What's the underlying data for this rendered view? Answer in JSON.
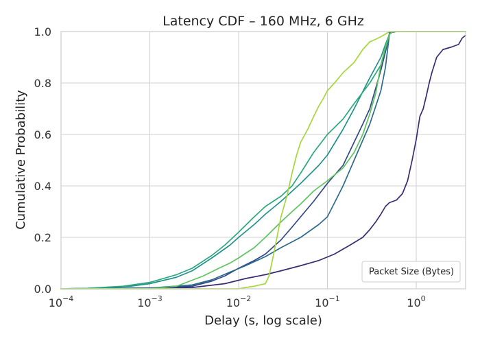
{
  "chart_data": {
    "type": "line",
    "title": "Latency CDF – 160 MHz, 6 GHz",
    "xlabel": "Delay (s, log scale)",
    "ylabel": "Cumulative Probability",
    "xscale": "log",
    "xlim": [
      0.0001,
      3.6
    ],
    "ylim": [
      0,
      1.0
    ],
    "grid": true,
    "legend": {
      "title": "Packet Size (Bytes)",
      "placement": "bottom-right"
    },
    "x_ticks": [
      {
        "base": "10",
        "exp": "−4",
        "value": 0.0001
      },
      {
        "base": "10",
        "exp": "−3",
        "value": 0.001
      },
      {
        "base": "10",
        "exp": "−2",
        "value": 0.01
      },
      {
        "base": "10",
        "exp": "−1",
        "value": 0.1
      },
      {
        "base": "10",
        "exp": "0",
        "value": 1
      }
    ],
    "y_ticks": [
      "0.0",
      "0.2",
      "0.4",
      "0.6",
      "0.8",
      "1.0"
    ],
    "series": [
      {
        "color": "#3b2a73",
        "points": [
          [
            0.0001,
            0
          ],
          [
            0.003,
            0.005
          ],
          [
            0.007,
            0.02
          ],
          [
            0.012,
            0.04
          ],
          [
            0.02,
            0.055
          ],
          [
            0.03,
            0.07
          ],
          [
            0.05,
            0.09
          ],
          [
            0.08,
            0.11
          ],
          [
            0.12,
            0.135
          ],
          [
            0.18,
            0.17
          ],
          [
            0.25,
            0.2
          ],
          [
            0.3,
            0.23
          ],
          [
            0.35,
            0.26
          ],
          [
            0.4,
            0.29
          ],
          [
            0.45,
            0.32
          ],
          [
            0.5,
            0.335
          ],
          [
            0.6,
            0.345
          ],
          [
            0.7,
            0.37
          ],
          [
            0.8,
            0.42
          ],
          [
            0.9,
            0.5
          ],
          [
            1.0,
            0.58
          ],
          [
            1.1,
            0.67
          ],
          [
            1.2,
            0.7
          ],
          [
            1.3,
            0.75
          ],
          [
            1.4,
            0.8
          ],
          [
            1.5,
            0.84
          ],
          [
            1.7,
            0.9
          ],
          [
            2.0,
            0.93
          ],
          [
            2.5,
            0.94
          ],
          [
            3.0,
            0.95
          ],
          [
            3.3,
            0.975
          ],
          [
            3.6,
            0.985
          ]
        ]
      },
      {
        "color": "#31478a",
        "points": [
          [
            0.0001,
            0
          ],
          [
            0.001,
            0.002
          ],
          [
            0.003,
            0.01
          ],
          [
            0.005,
            0.03
          ],
          [
            0.007,
            0.05
          ],
          [
            0.01,
            0.08
          ],
          [
            0.015,
            0.11
          ],
          [
            0.02,
            0.135
          ],
          [
            0.03,
            0.19
          ],
          [
            0.04,
            0.24
          ],
          [
            0.05,
            0.28
          ],
          [
            0.07,
            0.34
          ],
          [
            0.1,
            0.41
          ],
          [
            0.15,
            0.48
          ],
          [
            0.2,
            0.57
          ],
          [
            0.25,
            0.64
          ],
          [
            0.3,
            0.7
          ],
          [
            0.35,
            0.78
          ],
          [
            0.4,
            0.85
          ],
          [
            0.45,
            0.92
          ],
          [
            0.5,
            0.995
          ],
          [
            0.6,
            1.0
          ],
          [
            3.6,
            1.0
          ]
        ]
      },
      {
        "color": "#2a6a8c",
        "points": [
          [
            0.0001,
            0
          ],
          [
            0.001,
            0.003
          ],
          [
            0.003,
            0.015
          ],
          [
            0.005,
            0.035
          ],
          [
            0.008,
            0.065
          ],
          [
            0.012,
            0.09
          ],
          [
            0.02,
            0.125
          ],
          [
            0.03,
            0.16
          ],
          [
            0.05,
            0.2
          ],
          [
            0.08,
            0.25
          ],
          [
            0.1,
            0.28
          ],
          [
            0.15,
            0.4
          ],
          [
            0.2,
            0.5
          ],
          [
            0.3,
            0.64
          ],
          [
            0.4,
            0.77
          ],
          [
            0.45,
            0.86
          ],
          [
            0.5,
            0.99
          ],
          [
            0.55,
            1.0
          ],
          [
            3.6,
            1.0
          ]
        ]
      },
      {
        "color": "#21918c",
        "points": [
          [
            0.0001,
            0
          ],
          [
            0.0003,
            0.003
          ],
          [
            0.0006,
            0.01
          ],
          [
            0.001,
            0.02
          ],
          [
            0.002,
            0.045
          ],
          [
            0.003,
            0.07
          ],
          [
            0.005,
            0.12
          ],
          [
            0.008,
            0.17
          ],
          [
            0.01,
            0.2
          ],
          [
            0.015,
            0.25
          ],
          [
            0.02,
            0.29
          ],
          [
            0.03,
            0.34
          ],
          [
            0.05,
            0.41
          ],
          [
            0.08,
            0.48
          ],
          [
            0.1,
            0.52
          ],
          [
            0.15,
            0.62
          ],
          [
            0.2,
            0.7
          ],
          [
            0.3,
            0.82
          ],
          [
            0.4,
            0.9
          ],
          [
            0.45,
            0.95
          ],
          [
            0.5,
            0.99
          ],
          [
            0.55,
            1.0
          ],
          [
            3.6,
            1.0
          ]
        ]
      },
      {
        "color": "#2aa87e",
        "points": [
          [
            0.0001,
            0
          ],
          [
            0.0002,
            0.002
          ],
          [
            0.0005,
            0.01
          ],
          [
            0.001,
            0.025
          ],
          [
            0.002,
            0.055
          ],
          [
            0.003,
            0.08
          ],
          [
            0.005,
            0.13
          ],
          [
            0.007,
            0.17
          ],
          [
            0.01,
            0.22
          ],
          [
            0.015,
            0.28
          ],
          [
            0.02,
            0.32
          ],
          [
            0.03,
            0.36
          ],
          [
            0.04,
            0.4
          ],
          [
            0.05,
            0.45
          ],
          [
            0.07,
            0.53
          ],
          [
            0.1,
            0.6
          ],
          [
            0.15,
            0.66
          ],
          [
            0.2,
            0.72
          ],
          [
            0.3,
            0.8
          ],
          [
            0.4,
            0.87
          ],
          [
            0.5,
            0.99
          ],
          [
            0.55,
            1.0
          ],
          [
            3.6,
            1.0
          ]
        ]
      },
      {
        "color": "#5cc35f",
        "points": [
          [
            0.0001,
            0
          ],
          [
            0.001,
            0
          ],
          [
            0.002,
            0.01
          ],
          [
            0.004,
            0.05
          ],
          [
            0.006,
            0.08
          ],
          [
            0.008,
            0.1
          ],
          [
            0.01,
            0.12
          ],
          [
            0.015,
            0.16
          ],
          [
            0.02,
            0.2
          ],
          [
            0.03,
            0.26
          ],
          [
            0.04,
            0.3
          ],
          [
            0.05,
            0.33
          ],
          [
            0.07,
            0.38
          ],
          [
            0.1,
            0.42
          ],
          [
            0.15,
            0.47
          ],
          [
            0.2,
            0.53
          ],
          [
            0.25,
            0.6
          ],
          [
            0.3,
            0.68
          ],
          [
            0.35,
            0.76
          ],
          [
            0.4,
            0.87
          ],
          [
            0.45,
            0.94
          ],
          [
            0.5,
            0.99
          ],
          [
            0.55,
            1.0
          ],
          [
            3.6,
            1.0
          ]
        ]
      },
      {
        "color": "#a5d73a",
        "points": [
          [
            0.0001,
            0
          ],
          [
            0.01,
            0
          ],
          [
            0.012,
            0.005
          ],
          [
            0.015,
            0.01
          ],
          [
            0.02,
            0.02
          ],
          [
            0.022,
            0.05
          ],
          [
            0.025,
            0.14
          ],
          [
            0.03,
            0.28
          ],
          [
            0.035,
            0.36
          ],
          [
            0.04,
            0.45
          ],
          [
            0.045,
            0.52
          ],
          [
            0.05,
            0.57
          ],
          [
            0.06,
            0.62
          ],
          [
            0.07,
            0.67
          ],
          [
            0.08,
            0.71
          ],
          [
            0.09,
            0.74
          ],
          [
            0.1,
            0.77
          ],
          [
            0.12,
            0.8
          ],
          [
            0.15,
            0.84
          ],
          [
            0.2,
            0.88
          ],
          [
            0.25,
            0.93
          ],
          [
            0.3,
            0.96
          ],
          [
            0.35,
            0.97
          ],
          [
            0.4,
            0.98
          ],
          [
            0.45,
            0.99
          ],
          [
            0.5,
            1.0
          ],
          [
            3.6,
            1.0
          ]
        ]
      }
    ]
  }
}
